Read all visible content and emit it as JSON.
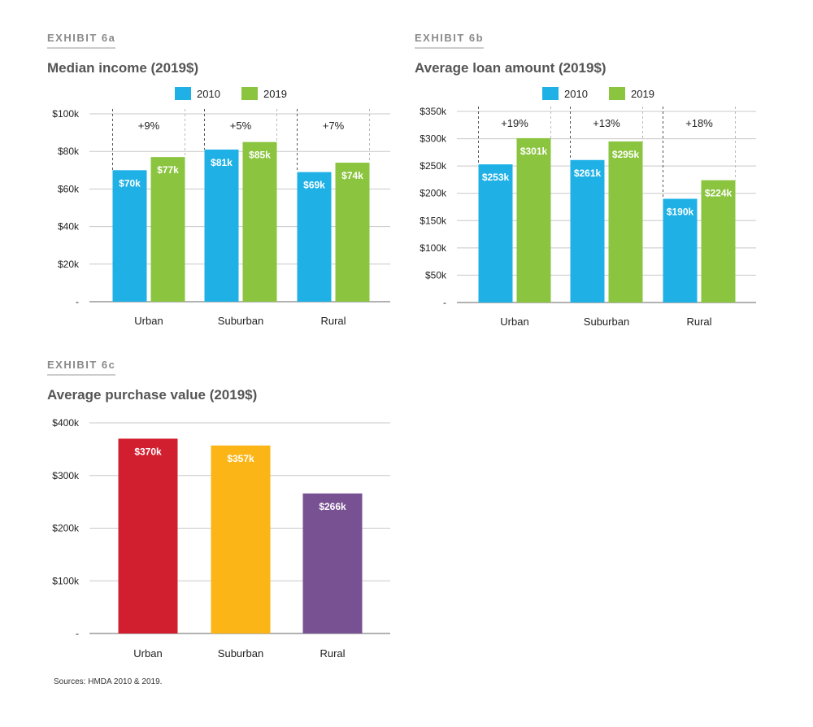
{
  "source_note": "Sources: HMDA 2010 & 2019.",
  "colors": {
    "y2010": "#1fb1e6",
    "y2019": "#8bc43f",
    "urban": "#d21f30",
    "suburban": "#fbb516",
    "rural": "#785192",
    "grid": "#c8c8c8"
  },
  "exhibits": [
    {
      "label": "EXHIBIT 6a",
      "title": "Median income (2019$)"
    },
    {
      "label": "EXHIBIT 6b",
      "title": "Average loan amount (2019$)"
    },
    {
      "label": "EXHIBIT 6c",
      "title": "Average purchase value (2019$)"
    }
  ],
  "chart_data": [
    {
      "type": "bar",
      "title": "Median income (2019$)",
      "categories": [
        "Urban",
        "Suburban",
        "Rural"
      ],
      "series": [
        {
          "name": "2010",
          "values": [
            70,
            81,
            69
          ],
          "labels": [
            "$70k",
            "$81k",
            "$69k"
          ]
        },
        {
          "name": "2019",
          "values": [
            77,
            85,
            74
          ],
          "labels": [
            "$77k",
            "$85k",
            "$74k"
          ]
        }
      ],
      "changes": [
        "+9%",
        "+5%",
        "+7%"
      ],
      "ylim": [
        0,
        100
      ],
      "yticks": [
        0,
        20,
        40,
        60,
        80,
        100
      ],
      "ytick_labels": [
        "-",
        "$20k",
        "$40k",
        "$60k",
        "$80k",
        "$100k"
      ],
      "legend": "top-center"
    },
    {
      "type": "bar",
      "title": "Average loan amount (2019$)",
      "categories": [
        "Urban",
        "Suburban",
        "Rural"
      ],
      "series": [
        {
          "name": "2010",
          "values": [
            253,
            261,
            190
          ],
          "labels": [
            "$253k",
            "$261k",
            "$190k"
          ]
        },
        {
          "name": "2019",
          "values": [
            301,
            295,
            224
          ],
          "labels": [
            "$301k",
            "$295k",
            "$224k"
          ]
        }
      ],
      "changes": [
        "+19%",
        "+13%",
        "+18%"
      ],
      "ylim": [
        0,
        350
      ],
      "yticks": [
        0,
        50,
        100,
        150,
        200,
        250,
        300,
        350
      ],
      "ytick_labels": [
        "-",
        "$50k",
        "$100k",
        "$150k",
        "$200k",
        "$250k",
        "$300k",
        "$350k"
      ],
      "legend": "top-center"
    },
    {
      "type": "bar",
      "title": "Average purchase value (2019$)",
      "categories": [
        "Urban",
        "Suburban",
        "Rural"
      ],
      "values": [
        370,
        357,
        266
      ],
      "labels": [
        "$370k",
        "$357k",
        "$266k"
      ],
      "ylim": [
        0,
        400
      ],
      "yticks": [
        0,
        100,
        200,
        300,
        400
      ],
      "ytick_labels": [
        "-",
        "$100k",
        "$200k",
        "$300k",
        "$400k"
      ]
    }
  ]
}
